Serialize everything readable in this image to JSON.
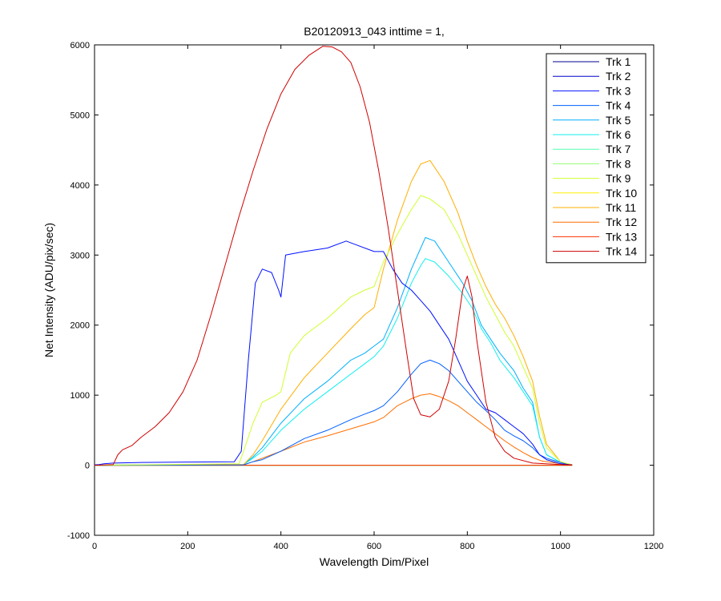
{
  "chart_data": {
    "type": "line",
    "title": "B20120913_043 inttime = 1,",
    "xlabel": "Wavelength Dim/Pixel",
    "ylabel": "Net Intensity (ADU/pix/sec)",
    "xlim": [
      0,
      1200
    ],
    "ylim": [
      -1000,
      6000
    ],
    "xticks": [
      0,
      200,
      400,
      600,
      800,
      1000,
      1200
    ],
    "yticks": [
      -1000,
      0,
      1000,
      2000,
      3000,
      4000,
      5000,
      6000
    ],
    "grid": false,
    "legend_position": "top-right",
    "series": [
      {
        "name": "Trk 1",
        "color": "#00008f",
        "points": [
          [
            0,
            0
          ],
          [
            1025,
            0
          ]
        ]
      },
      {
        "name": "Trk 2",
        "color": "#0000cc",
        "points": [
          [
            0,
            0
          ],
          [
            1025,
            0
          ]
        ]
      },
      {
        "name": "Trk 3",
        "color": "#0010ff",
        "points": [
          [
            0,
            5
          ],
          [
            10,
            10
          ],
          [
            20,
            20
          ],
          [
            40,
            30
          ],
          [
            100,
            40
          ],
          [
            200,
            45
          ],
          [
            300,
            50
          ],
          [
            315,
            200
          ],
          [
            330,
            1500
          ],
          [
            345,
            2600
          ],
          [
            360,
            2800
          ],
          [
            380,
            2750
          ],
          [
            395,
            2500
          ],
          [
            400,
            2400
          ],
          [
            410,
            3000
          ],
          [
            450,
            3050
          ],
          [
            500,
            3100
          ],
          [
            540,
            3200
          ],
          [
            560,
            3150
          ],
          [
            600,
            3050
          ],
          [
            620,
            3050
          ],
          [
            640,
            2800
          ],
          [
            660,
            2600
          ],
          [
            680,
            2500
          ],
          [
            700,
            2350
          ],
          [
            720,
            2200
          ],
          [
            740,
            2000
          ],
          [
            760,
            1800
          ],
          [
            780,
            1500
          ],
          [
            800,
            1200
          ],
          [
            820,
            1000
          ],
          [
            840,
            800
          ],
          [
            860,
            750
          ],
          [
            880,
            650
          ],
          [
            900,
            550
          ],
          [
            920,
            450
          ],
          [
            940,
            300
          ],
          [
            955,
            150
          ],
          [
            970,
            80
          ],
          [
            1000,
            20
          ],
          [
            1025,
            5
          ]
        ]
      },
      {
        "name": "Trk 4",
        "color": "#0060ff",
        "points": [
          [
            0,
            0
          ],
          [
            320,
            5
          ],
          [
            340,
            50
          ],
          [
            360,
            80
          ],
          [
            400,
            200
          ],
          [
            450,
            380
          ],
          [
            500,
            500
          ],
          [
            550,
            650
          ],
          [
            580,
            730
          ],
          [
            600,
            780
          ],
          [
            620,
            850
          ],
          [
            650,
            1050
          ],
          [
            680,
            1300
          ],
          [
            700,
            1450
          ],
          [
            720,
            1500
          ],
          [
            740,
            1450
          ],
          [
            760,
            1350
          ],
          [
            780,
            1200
          ],
          [
            800,
            1050
          ],
          [
            820,
            900
          ],
          [
            840,
            780
          ],
          [
            860,
            650
          ],
          [
            880,
            500
          ],
          [
            900,
            420
          ],
          [
            920,
            350
          ],
          [
            940,
            250
          ],
          [
            955,
            150
          ],
          [
            970,
            100
          ],
          [
            1000,
            40
          ],
          [
            1025,
            5
          ]
        ]
      },
      {
        "name": "Trk 5",
        "color": "#00b0ff",
        "points": [
          [
            0,
            0
          ],
          [
            320,
            10
          ],
          [
            340,
            120
          ],
          [
            360,
            250
          ],
          [
            400,
            600
          ],
          [
            450,
            950
          ],
          [
            500,
            1200
          ],
          [
            550,
            1500
          ],
          [
            580,
            1600
          ],
          [
            600,
            1700
          ],
          [
            620,
            1800
          ],
          [
            650,
            2250
          ],
          [
            680,
            2800
          ],
          [
            700,
            3100
          ],
          [
            710,
            3250
          ],
          [
            730,
            3200
          ],
          [
            760,
            2900
          ],
          [
            790,
            2600
          ],
          [
            810,
            2350
          ],
          [
            830,
            2000
          ],
          [
            850,
            1800
          ],
          [
            870,
            1600
          ],
          [
            900,
            1350
          ],
          [
            920,
            1100
          ],
          [
            940,
            900
          ],
          [
            955,
            400
          ],
          [
            970,
            150
          ],
          [
            1000,
            40
          ],
          [
            1025,
            5
          ]
        ]
      },
      {
        "name": "Trk 6",
        "color": "#10f0ef",
        "points": [
          [
            0,
            0
          ],
          [
            320,
            10
          ],
          [
            340,
            100
          ],
          [
            360,
            200
          ],
          [
            400,
            500
          ],
          [
            450,
            800
          ],
          [
            500,
            1050
          ],
          [
            550,
            1300
          ],
          [
            580,
            1450
          ],
          [
            600,
            1550
          ],
          [
            620,
            1700
          ],
          [
            650,
            2100
          ],
          [
            680,
            2600
          ],
          [
            700,
            2850
          ],
          [
            710,
            2950
          ],
          [
            730,
            2900
          ],
          [
            760,
            2700
          ],
          [
            790,
            2450
          ],
          [
            810,
            2250
          ],
          [
            830,
            1950
          ],
          [
            850,
            1750
          ],
          [
            870,
            1500
          ],
          [
            900,
            1250
          ],
          [
            920,
            1050
          ],
          [
            940,
            850
          ],
          [
            955,
            400
          ],
          [
            970,
            150
          ],
          [
            1000,
            40
          ],
          [
            1025,
            5
          ]
        ]
      },
      {
        "name": "Trk 7",
        "color": "#50ffaf",
        "points": [
          [
            0,
            0
          ],
          [
            1025,
            0
          ]
        ]
      },
      {
        "name": "Trk 8",
        "color": "#90ff6f",
        "points": [
          [
            0,
            0
          ],
          [
            1025,
            0
          ]
        ]
      },
      {
        "name": "Trk 9",
        "color": "#cfff2f",
        "points": [
          [
            0,
            0
          ],
          [
            310,
            20
          ],
          [
            320,
            200
          ],
          [
            340,
            600
          ],
          [
            360,
            900
          ],
          [
            390,
            1000
          ],
          [
            400,
            1050
          ],
          [
            420,
            1600
          ],
          [
            450,
            1850
          ],
          [
            500,
            2100
          ],
          [
            550,
            2400
          ],
          [
            580,
            2500
          ],
          [
            600,
            2550
          ],
          [
            620,
            2900
          ],
          [
            650,
            3300
          ],
          [
            680,
            3650
          ],
          [
            700,
            3850
          ],
          [
            720,
            3800
          ],
          [
            750,
            3650
          ],
          [
            780,
            3300
          ],
          [
            800,
            3000
          ],
          [
            820,
            2700
          ],
          [
            840,
            2400
          ],
          [
            860,
            2150
          ],
          [
            880,
            1900
          ],
          [
            900,
            1700
          ],
          [
            920,
            1400
          ],
          [
            940,
            1100
          ],
          [
            955,
            600
          ],
          [
            970,
            250
          ],
          [
            1000,
            50
          ],
          [
            1025,
            5
          ]
        ]
      },
      {
        "name": "Trk 10",
        "color": "#ffef00",
        "points": [
          [
            0,
            0
          ],
          [
            1025,
            0
          ]
        ]
      },
      {
        "name": "Trk 11",
        "color": "#ffaf00",
        "points": [
          [
            0,
            0
          ],
          [
            320,
            10
          ],
          [
            340,
            150
          ],
          [
            360,
            350
          ],
          [
            400,
            800
          ],
          [
            450,
            1250
          ],
          [
            500,
            1600
          ],
          [
            550,
            1950
          ],
          [
            580,
            2150
          ],
          [
            600,
            2250
          ],
          [
            620,
            2800
          ],
          [
            650,
            3500
          ],
          [
            680,
            4050
          ],
          [
            700,
            4300
          ],
          [
            720,
            4350
          ],
          [
            750,
            4050
          ],
          [
            780,
            3600
          ],
          [
            800,
            3200
          ],
          [
            820,
            2850
          ],
          [
            840,
            2550
          ],
          [
            860,
            2300
          ],
          [
            880,
            2100
          ],
          [
            900,
            1850
          ],
          [
            920,
            1550
          ],
          [
            940,
            1200
          ],
          [
            955,
            700
          ],
          [
            970,
            300
          ],
          [
            1000,
            50
          ],
          [
            1025,
            5
          ]
        ]
      },
      {
        "name": "Trk 12",
        "color": "#ff6f00",
        "points": [
          [
            0,
            0
          ],
          [
            320,
            5
          ],
          [
            340,
            50
          ],
          [
            360,
            100
          ],
          [
            400,
            200
          ],
          [
            450,
            330
          ],
          [
            500,
            420
          ],
          [
            550,
            520
          ],
          [
            580,
            580
          ],
          [
            600,
            620
          ],
          [
            620,
            680
          ],
          [
            650,
            850
          ],
          [
            680,
            950
          ],
          [
            700,
            1000
          ],
          [
            720,
            1020
          ],
          [
            740,
            980
          ],
          [
            760,
            920
          ],
          [
            780,
            850
          ],
          [
            800,
            750
          ],
          [
            820,
            650
          ],
          [
            840,
            550
          ],
          [
            860,
            450
          ],
          [
            880,
            350
          ],
          [
            900,
            260
          ],
          [
            920,
            180
          ],
          [
            940,
            110
          ],
          [
            960,
            60
          ],
          [
            1000,
            20
          ],
          [
            1025,
            5
          ]
        ]
      },
      {
        "name": "Trk 13",
        "color": "#ff2f00",
        "points": [
          [
            0,
            0
          ],
          [
            1025,
            0
          ]
        ]
      },
      {
        "name": "Trk 14",
        "color": "#cf0000",
        "points": [
          [
            0,
            0
          ],
          [
            40,
            10
          ],
          [
            50,
            150
          ],
          [
            60,
            220
          ],
          [
            80,
            280
          ],
          [
            100,
            400
          ],
          [
            130,
            550
          ],
          [
            160,
            750
          ],
          [
            190,
            1050
          ],
          [
            220,
            1500
          ],
          [
            250,
            2150
          ],
          [
            280,
            2850
          ],
          [
            310,
            3550
          ],
          [
            340,
            4200
          ],
          [
            370,
            4800
          ],
          [
            400,
            5300
          ],
          [
            430,
            5650
          ],
          [
            460,
            5850
          ],
          [
            490,
            5980
          ],
          [
            510,
            5970
          ],
          [
            530,
            5900
          ],
          [
            550,
            5750
          ],
          [
            570,
            5400
          ],
          [
            590,
            4900
          ],
          [
            610,
            4200
          ],
          [
            630,
            3400
          ],
          [
            650,
            2500
          ],
          [
            670,
            1600
          ],
          [
            685,
            950
          ],
          [
            700,
            720
          ],
          [
            720,
            690
          ],
          [
            740,
            800
          ],
          [
            760,
            1200
          ],
          [
            775,
            1800
          ],
          [
            790,
            2500
          ],
          [
            800,
            2700
          ],
          [
            810,
            2400
          ],
          [
            820,
            1800
          ],
          [
            840,
            900
          ],
          [
            860,
            400
          ],
          [
            880,
            200
          ],
          [
            900,
            100
          ],
          [
            940,
            30
          ],
          [
            1000,
            10
          ],
          [
            1025,
            5
          ]
        ]
      }
    ]
  }
}
